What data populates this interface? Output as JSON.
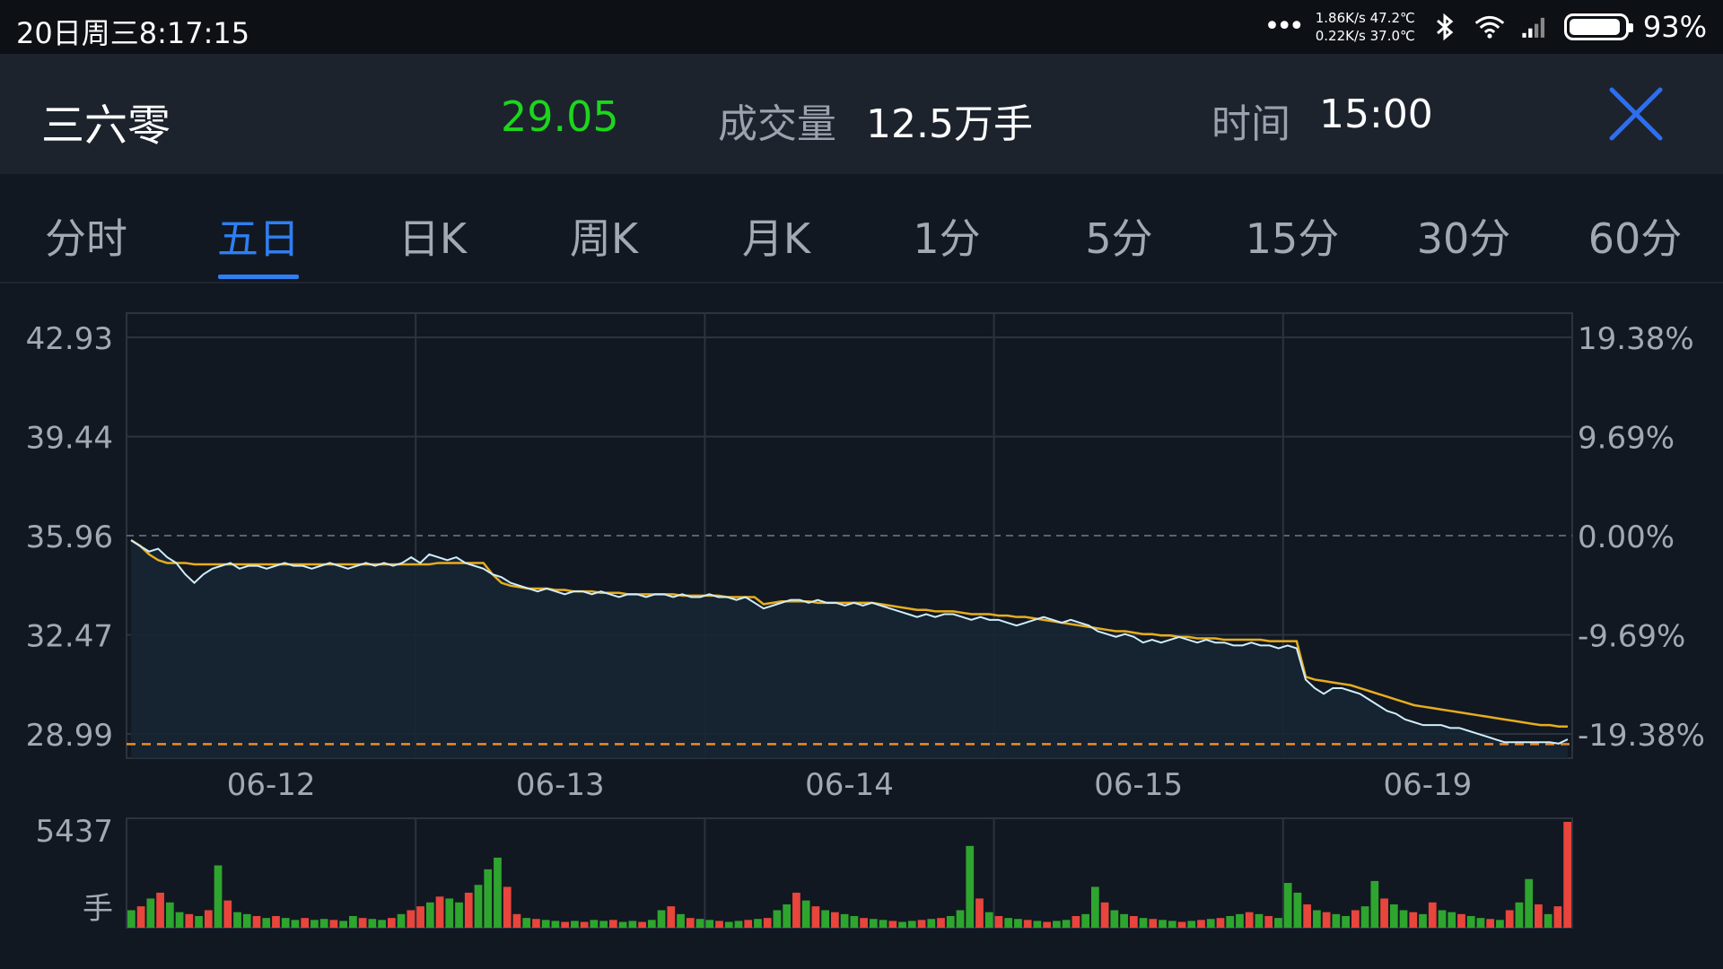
{
  "status_bar": {
    "time": "20日周三8:17:15",
    "dots": "•••",
    "net_line1": "1.86K/s 47.2℃",
    "net_line2": "0.22K/s 37.0℃",
    "bluetooth_icon": "bluetooth-icon",
    "wifi_icon": "wifi-icon",
    "signal_icon": "signal-icon",
    "battery_percent": "93%",
    "battery_level": 0.93
  },
  "header": {
    "stock_name": "三六零",
    "price": "29.05",
    "volume_label": "成交量",
    "volume": "12.5万手",
    "time_label": "时间",
    "time": "15:00",
    "close_icon": "close-icon"
  },
  "tabs": {
    "items": [
      {
        "label": "分时"
      },
      {
        "label": "五日"
      },
      {
        "label": "日K"
      },
      {
        "label": "周K"
      },
      {
        "label": "月K"
      },
      {
        "label": "1分"
      },
      {
        "label": "5分"
      },
      {
        "label": "15分"
      },
      {
        "label": "30分"
      },
      {
        "label": "60分"
      }
    ],
    "active_index": 1
  },
  "colors": {
    "price_line": "#cfeefb",
    "avg_line": "#e6ad1f",
    "price_up": "#1cd61c",
    "vol_up": "#e8453c",
    "vol_down": "#2ea52e",
    "accent": "#2e7ff2",
    "limit_line": "#f08a24"
  },
  "chart_data": {
    "type": "line",
    "title": "",
    "days": [
      "06-12",
      "06-13",
      "06-14",
      "06-15",
      "06-19"
    ],
    "y_left_ticks": [
      "42.93",
      "39.44",
      "35.96",
      "32.47",
      "28.99"
    ],
    "y_right_ticks": [
      "19.38%",
      "9.69%",
      "0.00%",
      "-9.69%",
      "-19.38%"
    ],
    "ylim": [
      28.99,
      42.93
    ],
    "prev_close": 35.96,
    "limit_down": 28.63,
    "series": [
      {
        "values": [
          35.8,
          35.6,
          35.4,
          35.5,
          35.2,
          35.0,
          34.6,
          34.3,
          34.6,
          34.8,
          34.9,
          35.0,
          34.8,
          34.9,
          34.9,
          34.8,
          34.9,
          35.0,
          34.9,
          34.9,
          34.8,
          34.9,
          35.0,
          34.9,
          34.8,
          34.9,
          35.0,
          34.9,
          35.0,
          34.9,
          35.0,
          35.2,
          35.0,
          35.3,
          35.2,
          35.1,
          35.2,
          35.0,
          34.9,
          34.8,
          34.6,
          34.5,
          34.3,
          34.2,
          34.1,
          34.0,
          34.1,
          34.0,
          33.9,
          34.0,
          34.0,
          33.9,
          34.0,
          33.9,
          33.8,
          33.9,
          33.9,
          33.8,
          33.9,
          33.9,
          33.8,
          33.9,
          33.8,
          33.8,
          33.9,
          33.8,
          33.8,
          33.7,
          33.8,
          33.6,
          33.4,
          33.5,
          33.6,
          33.7,
          33.7,
          33.6,
          33.7,
          33.6,
          33.6,
          33.5,
          33.6,
          33.5,
          33.6,
          33.5,
          33.4,
          33.3,
          33.2,
          33.1,
          33.2,
          33.1,
          33.2,
          33.2,
          33.1,
          33.0,
          33.1,
          33.0,
          33.0,
          32.9,
          32.8,
          32.9,
          33.0,
          33.1,
          33.0,
          32.9,
          33.0,
          32.9,
          32.8,
          32.6,
          32.5,
          32.4,
          32.5,
          32.4,
          32.2,
          32.3,
          32.2,
          32.3,
          32.4,
          32.3,
          32.2,
          32.3,
          32.2,
          32.2,
          32.1,
          32.1,
          32.2,
          32.1,
          32.1,
          32.0,
          32.1,
          32.0,
          30.9,
          30.6,
          30.4,
          30.6,
          30.6,
          30.5,
          30.4,
          30.2,
          30.0,
          29.8,
          29.7,
          29.5,
          29.4,
          29.3,
          29.3,
          29.3,
          29.2,
          29.2,
          29.1,
          29.0,
          28.9,
          28.8,
          28.7,
          28.7,
          28.7,
          28.7,
          28.7,
          28.7,
          28.65,
          28.8
        ]
      },
      {
        "values": [
          35.8,
          35.6,
          35.3,
          35.1,
          35.0,
          35.0,
          35.0,
          34.95,
          34.95,
          34.95,
          34.95,
          34.95,
          34.95,
          34.95,
          34.95,
          34.95,
          34.95,
          34.95,
          34.95,
          34.95,
          34.95,
          34.95,
          34.95,
          34.95,
          34.95,
          34.95,
          34.95,
          34.95,
          34.95,
          34.95,
          34.95,
          34.95,
          34.95,
          34.95,
          35.0,
          35.0,
          35.0,
          35.0,
          35.0,
          35.0,
          34.6,
          34.3,
          34.2,
          34.15,
          34.1,
          34.1,
          34.1,
          34.05,
          34.05,
          34.0,
          34.0,
          34.0,
          33.95,
          33.95,
          33.95,
          33.9,
          33.9,
          33.9,
          33.9,
          33.9,
          33.9,
          33.85,
          33.85,
          33.85,
          33.85,
          33.85,
          33.8,
          33.8,
          33.8,
          33.8,
          33.55,
          33.6,
          33.65,
          33.65,
          33.65,
          33.65,
          33.6,
          33.6,
          33.6,
          33.6,
          33.6,
          33.6,
          33.6,
          33.55,
          33.5,
          33.45,
          33.4,
          33.35,
          33.35,
          33.3,
          33.3,
          33.3,
          33.25,
          33.2,
          33.2,
          33.2,
          33.15,
          33.15,
          33.1,
          33.1,
          33.05,
          33.0,
          32.95,
          32.9,
          32.85,
          32.8,
          32.75,
          32.7,
          32.65,
          32.6,
          32.6,
          32.55,
          32.5,
          32.5,
          32.45,
          32.45,
          32.4,
          32.4,
          32.35,
          32.35,
          32.35,
          32.3,
          32.3,
          32.3,
          32.3,
          32.3,
          32.25,
          32.25,
          32.25,
          32.25,
          31.0,
          30.9,
          30.85,
          30.8,
          30.75,
          30.7,
          30.6,
          30.5,
          30.4,
          30.3,
          30.2,
          30.1,
          30.0,
          29.95,
          29.9,
          29.85,
          29.8,
          29.75,
          29.7,
          29.65,
          29.6,
          29.55,
          29.5,
          29.45,
          29.4,
          29.35,
          29.3,
          29.3,
          29.25,
          29.25
        ]
      }
    ],
    "volume": {
      "max_label": "5437",
      "unit_label": "手",
      "max": 5437,
      "values": [
        900,
        1100,
        1500,
        1800,
        1300,
        800,
        700,
        600,
        900,
        3200,
        1400,
        800,
        700,
        600,
        500,
        600,
        500,
        400,
        500,
        400,
        450,
        400,
        350,
        600,
        500,
        450,
        400,
        500,
        700,
        900,
        1100,
        1300,
        1600,
        1500,
        1300,
        1800,
        2200,
        3000,
        3600,
        2100,
        700,
        500,
        450,
        400,
        350,
        300,
        350,
        300,
        400,
        350,
        400,
        300,
        350,
        300,
        400,
        900,
        1100,
        700,
        500,
        450,
        400,
        350,
        300,
        350,
        400,
        450,
        500,
        900,
        1200,
        1800,
        1400,
        1100,
        900,
        800,
        700,
        600,
        500,
        450,
        400,
        350,
        300,
        350,
        400,
        450,
        500,
        600,
        900,
        4200,
        1500,
        800,
        600,
        500,
        450,
        400,
        350,
        300,
        350,
        400,
        600,
        700,
        2100,
        1300,
        900,
        700,
        600,
        500,
        450,
        400,
        350,
        300,
        350,
        400,
        450,
        500,
        600,
        700,
        800,
        700,
        600,
        500,
        2300,
        1800,
        1200,
        900,
        800,
        700,
        600,
        900,
        1100,
        2400,
        1500,
        1200,
        900,
        800,
        700,
        1300,
        900,
        800,
        700,
        600,
        500,
        450,
        400,
        900,
        1300,
        2500,
        1200,
        700,
        1100,
        5437
      ],
      "up": [
        0,
        1,
        0,
        1,
        0,
        0,
        1,
        0,
        1,
        0,
        1,
        0,
        0,
        1,
        0,
        1,
        0,
        0,
        1,
        0,
        0,
        1,
        0,
        0,
        1,
        0,
        0,
        1,
        0,
        1,
        1,
        0,
        1,
        0,
        0,
        1,
        0,
        0,
        0,
        1,
        1,
        0,
        1,
        0,
        0,
        1,
        0,
        1,
        0,
        0,
        1,
        0,
        0,
        1,
        0,
        0,
        1,
        0,
        1,
        0,
        0,
        1,
        0,
        0,
        1,
        0,
        1,
        0,
        0,
        1,
        0,
        1,
        0,
        1,
        0,
        0,
        1,
        0,
        0,
        1,
        0,
        0,
        1,
        0,
        1,
        0,
        0,
        0,
        1,
        0,
        1,
        0,
        0,
        1,
        0,
        1,
        0,
        0,
        1,
        0,
        0,
        1,
        0,
        0,
        1,
        0,
        1,
        0,
        0,
        1,
        0,
        1,
        0,
        1,
        0,
        0,
        1,
        0,
        1,
        0,
        0,
        0,
        1,
        0,
        1,
        0,
        0,
        1,
        0,
        0,
        1,
        0,
        0,
        1,
        0,
        1,
        0,
        0,
        1,
        0,
        0,
        1,
        0,
        1,
        0,
        0,
        1,
        0,
        1,
        1
      ]
    }
  }
}
